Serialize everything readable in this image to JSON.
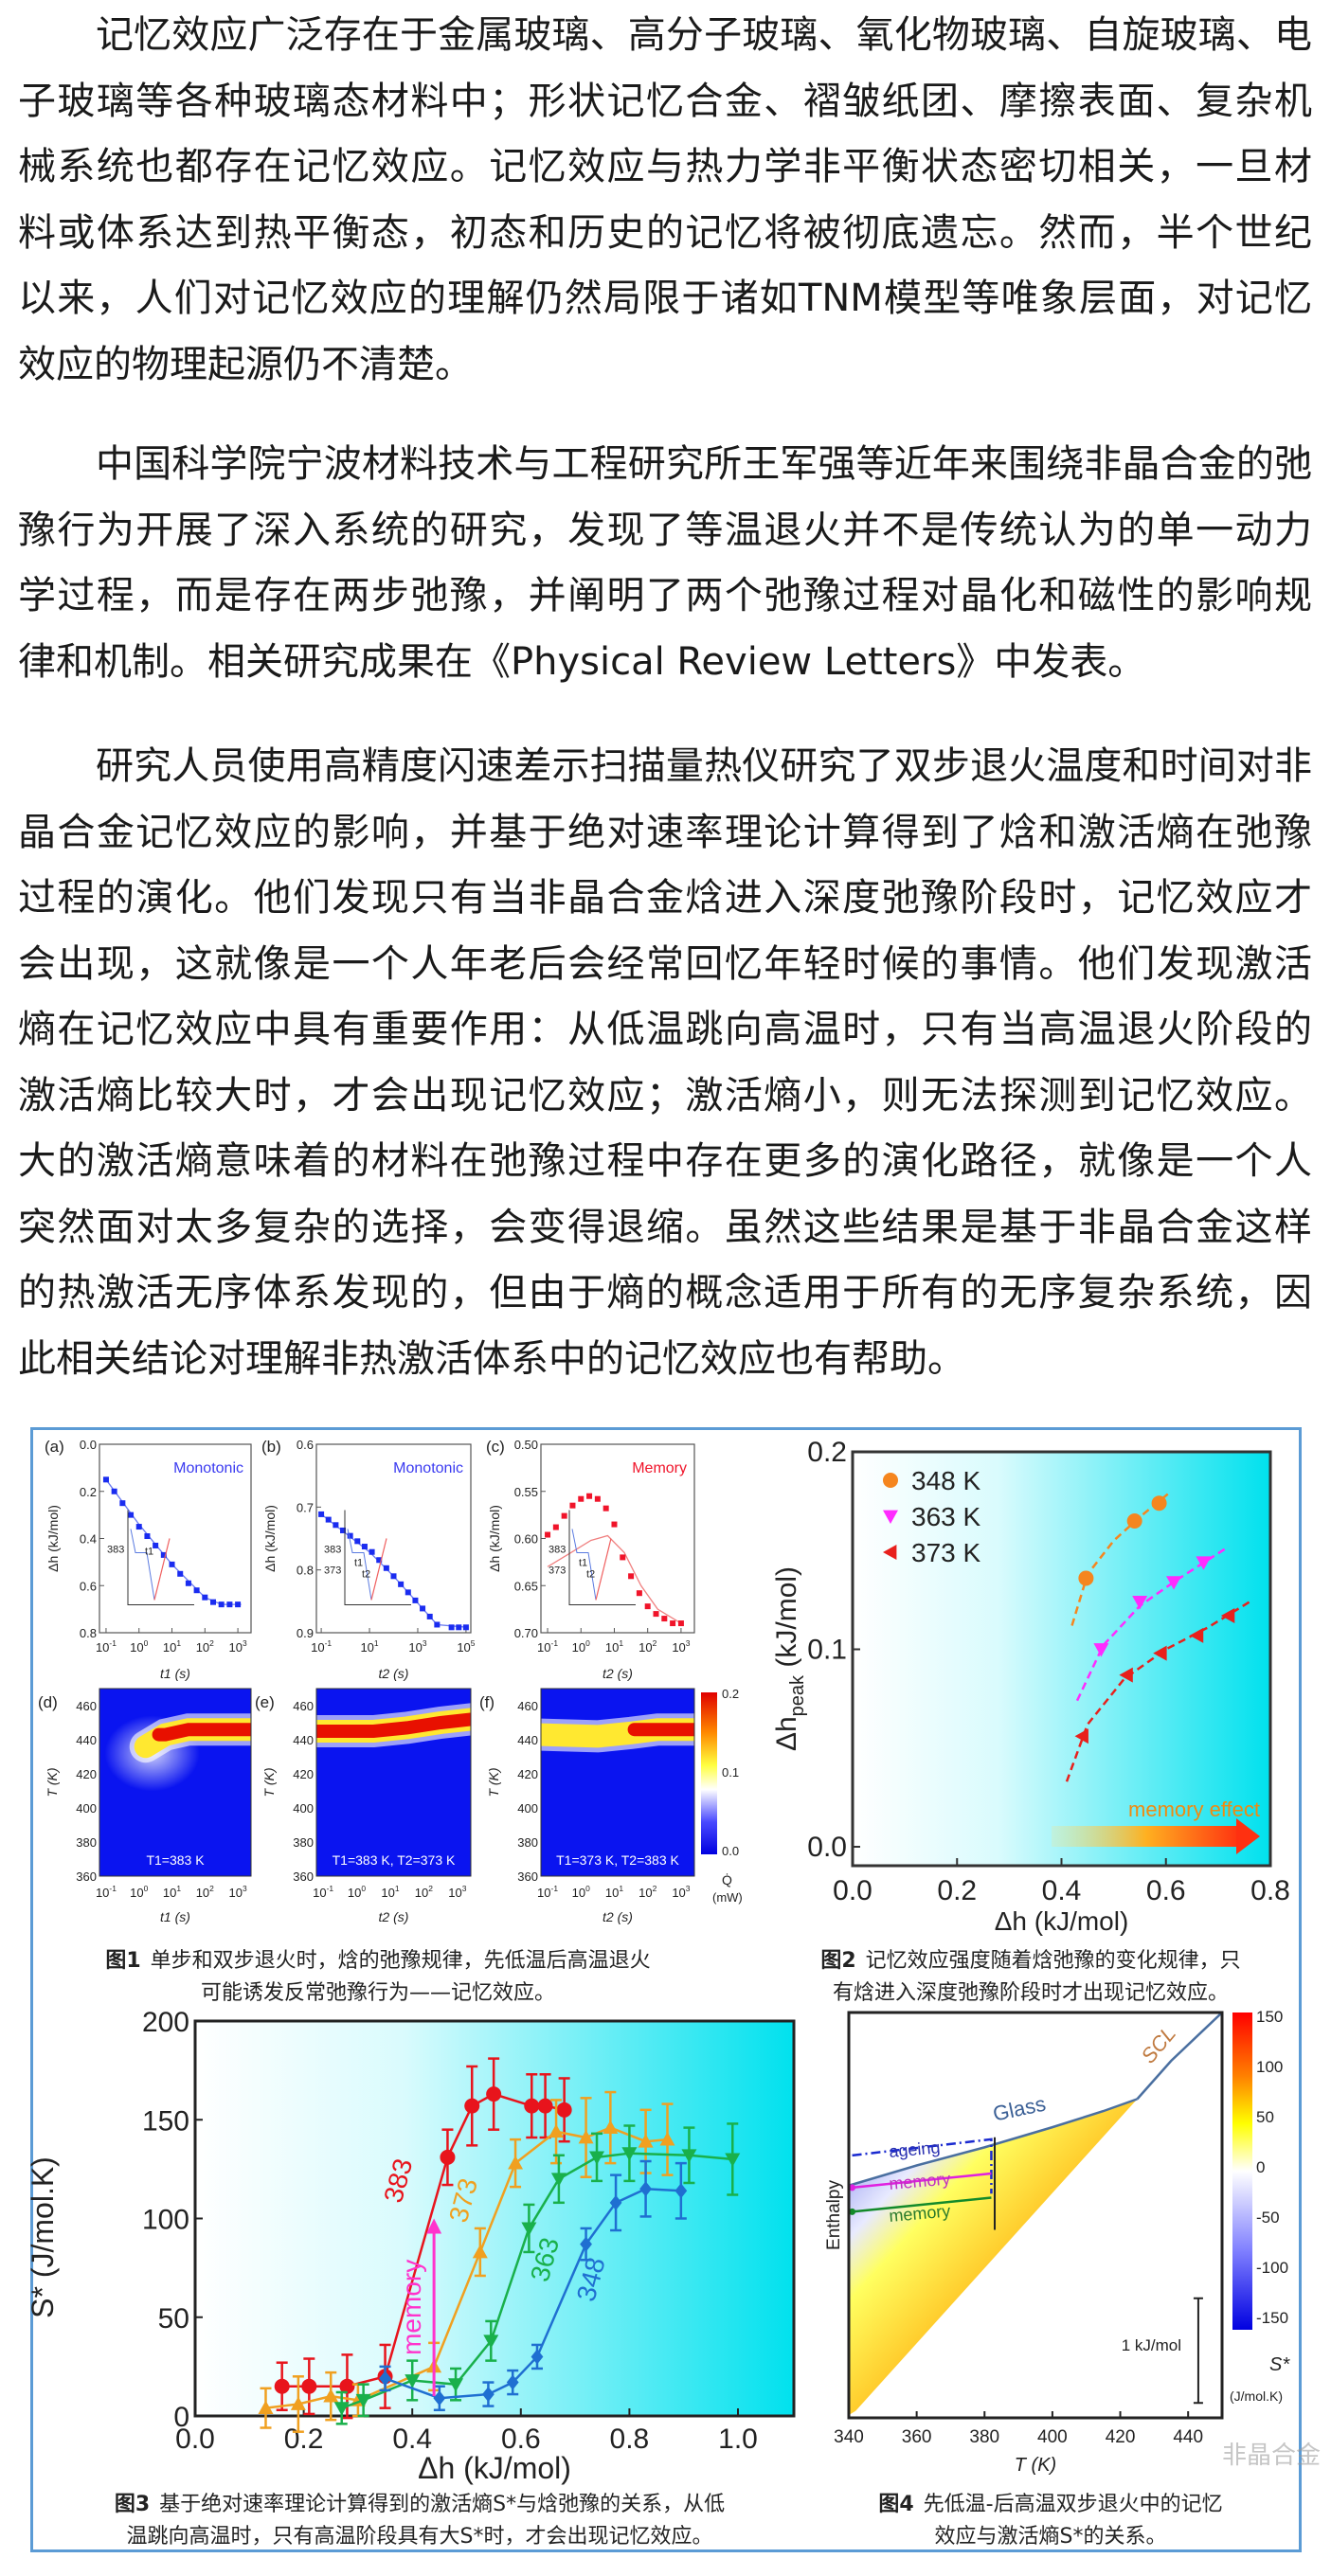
{
  "article": {
    "paragraphs": [
      {
        "lines": [
          "记忆效应广泛存在于金属玻璃、高分子玻璃、氧化物玻璃、自旋玻璃、电",
          "子玻璃等各种玻璃态材料中；形状记忆合金、褶皱纸团、摩擦表面、复杂机",
          "械系统也都存在记忆效应。记忆效应与热力学非平衡状态密切相关，一旦材",
          "料或体系达到热平衡态，初态和历史的记忆将被彻底遗忘。然而，半个世纪",
          "以来，人们对记忆效应的理解仍然局限于诸如TNM模型等唯象层面，对记忆",
          "效应的物理起源仍不清楚。"
        ]
      },
      {
        "lines": [
          "中国科学院宁波材料技术与工程研究所王军强等近年来围绕非晶合金的弛",
          "豫行为开展了深入系统的研究，发现了等温退火并不是传统认为的单一动力",
          "学过程，而是存在两步弛豫，并阐明了两个弛豫过程对晶化和磁性的影响规",
          "律和机制。相关研究成果在《Physical Review Letters》中发表。"
        ]
      },
      {
        "lines": [
          "研究人员使用高精度闪速差示扫描量热仪研究了双步退火温度和时间对非",
          "晶合金记忆效应的影响，并基于绝对速率理论计算得到了焓和激活熵在弛豫",
          "过程的演化。他们发现只有当非晶合金焓进入深度弛豫阶段时，记忆效应才",
          "会出现，这就像是一个人年老后会经常回忆年轻时候的事情。他们发现激活",
          "熵在记忆效应中具有重要作用：从低温跳向高温时，只有当高温退火阶段的",
          "激活熵比较大时，才会出现记忆效应；激活熵小，则无法探测到记忆效应。",
          "大的激活熵意味着的材料在弛豫过程中存在更多的演化路径，就像是一个人",
          "突然面对太多复杂的选择，会变得退缩。虽然这些结果是基于非晶合金这样",
          "的热激活无序体系发现的，但由于熵的概念适用于所有的无序复杂系统，因",
          "此相关结论对理解非热激活体系中的记忆效应也有帮助。"
        ]
      }
    ]
  },
  "captions": {
    "fig1": {
      "label": "图1",
      "line1": "单步和双步退火时，焓的弛豫规律，先低温后高温退火",
      "line2": "可能诱发反常弛豫行为——记忆效应。"
    },
    "fig2": {
      "label": "图2",
      "line1": "记忆效应强度随着焓弛豫的变化规律，只",
      "line2": "有焓进入深度弛豫阶段时才出现记忆效应。"
    },
    "fig3": {
      "label": "图3",
      "line1": "基于绝对速率理论计算得到的激活熵S*与焓弛豫的关系，从低",
      "line2": "温跳向高温时，只有高温阶段具有大S*时，才会出现记忆效应。"
    },
    "fig4": {
      "label": "图4",
      "line1": "先低温-后高温双步退火中的记忆",
      "line2": "效应与激活熵S*的关系。"
    },
    "watermark": "非晶合金"
  },
  "colors": {
    "border": "#5b9bd5",
    "cyan": "#00e1ee",
    "blue_marker": "#1a2cf0",
    "red_marker": "#f0142a"
  },
  "chart_data": [
    {
      "id": "fig1a",
      "type": "line",
      "panel_label": "(a)",
      "title": "Monotonic",
      "title_color": "#3a3af0",
      "x_scale": "log10",
      "x_ticks": [
        -1,
        0,
        1,
        2,
        3
      ],
      "xlim": [
        -1.2,
        3.4
      ],
      "xlabel": "t1 (s)",
      "ylabel": "Δh (kJ/mol)",
      "ylim": [
        0.0,
        0.8
      ],
      "y_reversed": true,
      "y_ticks": [
        "0.0",
        "0.2",
        "0.4",
        "0.6",
        "0.8"
      ],
      "marker_color": "#1a2cf0",
      "points": [
        [
          -1,
          0.15
        ],
        [
          -0.75,
          0.2
        ],
        [
          -0.5,
          0.25
        ],
        [
          -0.25,
          0.3
        ],
        [
          0,
          0.35
        ],
        [
          0.25,
          0.39
        ],
        [
          0.5,
          0.43
        ],
        [
          0.75,
          0.47
        ],
        [
          1,
          0.51
        ],
        [
          1.25,
          0.55
        ],
        [
          1.5,
          0.59
        ],
        [
          1.75,
          0.62
        ],
        [
          2,
          0.65
        ],
        [
          2.25,
          0.67
        ],
        [
          2.5,
          0.68
        ],
        [
          2.75,
          0.68
        ],
        [
          3,
          0.68
        ]
      ],
      "fit": [
        [
          -1,
          0.15
        ],
        [
          0,
          0.34
        ],
        [
          1,
          0.51
        ],
        [
          2,
          0.65
        ],
        [
          2.5,
          0.68
        ],
        [
          3.1,
          0.68
        ]
      ],
      "inset_labels": [
        "383",
        "t1"
      ]
    },
    {
      "id": "fig1b",
      "type": "line",
      "panel_label": "(b)",
      "title": "Monotonic",
      "title_color": "#3a3af0",
      "x_scale": "log10",
      "x_ticks": [
        -1,
        1,
        3,
        5
      ],
      "xlim": [
        -1.2,
        5.2
      ],
      "xlabel": "t2 (s)",
      "ylabel": "Δh (kJ/mol)",
      "ylim": [
        0.6,
        0.95
      ],
      "y_reversed": true,
      "y_ticks": [
        "0.6",
        "0.7",
        "0.8",
        "0.9"
      ],
      "marker_color": "#1a2cf0",
      "points": [
        [
          -1,
          0.73
        ],
        [
          -0.7,
          0.74
        ],
        [
          -0.4,
          0.75
        ],
        [
          -0.1,
          0.76
        ],
        [
          0.2,
          0.77
        ],
        [
          0.5,
          0.78
        ],
        [
          0.8,
          0.79
        ],
        [
          1.1,
          0.8
        ],
        [
          1.4,
          0.815
        ],
        [
          1.7,
          0.83
        ],
        [
          2.0,
          0.845
        ],
        [
          2.3,
          0.86
        ],
        [
          2.6,
          0.875
        ],
        [
          2.9,
          0.89
        ],
        [
          3.2,
          0.905
        ],
        [
          3.5,
          0.92
        ],
        [
          3.8,
          0.935
        ],
        [
          4.4,
          0.94
        ],
        [
          4.7,
          0.94
        ],
        [
          5.0,
          0.94
        ]
      ],
      "fit": [
        [
          -1,
          0.73
        ],
        [
          1,
          0.8
        ],
        [
          2,
          0.845
        ],
        [
          3,
          0.895
        ],
        [
          3.8,
          0.935
        ],
        [
          5.1,
          0.94
        ]
      ],
      "inset_labels": [
        "383",
        "373",
        "t1",
        "t2"
      ]
    },
    {
      "id": "fig1c",
      "type": "line",
      "panel_label": "(c)",
      "title": "Memory",
      "title_color": "#f0142a",
      "x_scale": "log10",
      "x_ticks": [
        -1,
        0,
        1,
        2,
        3
      ],
      "xlim": [
        -1.2,
        3.4
      ],
      "xlabel": "t2 (s)",
      "ylabel": "Δh (kJ/mol)",
      "ylim": [
        0.5,
        0.7
      ],
      "y_reversed": true,
      "y_ticks": [
        "0.50",
        "0.55",
        "0.60",
        "0.65",
        "0.70"
      ],
      "marker_color": "#f0142a",
      "points": [
        [
          -1,
          0.596
        ],
        [
          -0.75,
          0.588
        ],
        [
          -0.5,
          0.576
        ],
        [
          -0.25,
          0.565
        ],
        [
          0,
          0.558
        ],
        [
          0.25,
          0.555
        ],
        [
          0.5,
          0.558
        ],
        [
          0.75,
          0.568
        ],
        [
          1,
          0.585
        ],
        [
          1.25,
          0.62
        ],
        [
          1.5,
          0.64
        ],
        [
          1.75,
          0.658
        ],
        [
          2,
          0.672
        ],
        [
          2.25,
          0.68
        ],
        [
          2.5,
          0.685
        ],
        [
          2.75,
          0.69
        ],
        [
          3,
          0.69
        ]
      ],
      "fit": [
        [
          -1,
          0.63
        ],
        [
          -0.3,
          0.615
        ],
        [
          0.3,
          0.602
        ],
        [
          0.8,
          0.597
        ],
        [
          1.3,
          0.615
        ],
        [
          1.8,
          0.65
        ],
        [
          2.3,
          0.675
        ],
        [
          3,
          0.69
        ]
      ],
      "inset_labels": [
        "383",
        "373",
        "t1",
        "t2"
      ]
    },
    {
      "id": "fig1d",
      "type": "heatmap",
      "panel_label": "(d)",
      "annotation": "T1=383 K",
      "x_ticks": [
        -1,
        0,
        1,
        2,
        3
      ],
      "xlim": [
        -1.2,
        3.4
      ],
      "xlabel": "t1 (s)",
      "ylabel": "T (K)",
      "ylim": [
        360,
        470
      ],
      "y_ticks": [
        360,
        380,
        400,
        420,
        440,
        460
      ],
      "ridge": [
        [
          0.2,
          436
        ],
        [
          0.8,
          443
        ],
        [
          1.5,
          446
        ],
        [
          3.4,
          446
        ]
      ],
      "red_from": 0.6,
      "glow": true
    },
    {
      "id": "fig1e",
      "type": "heatmap",
      "panel_label": "(e)",
      "annotation": "T1=383 K, T2=373 K",
      "x_ticks": [
        -1,
        0,
        1,
        2,
        3
      ],
      "xlim": [
        -1.2,
        3.4
      ],
      "xlabel": "t2 (s)",
      "ylabel": "T (K)",
      "ylim": [
        360,
        470
      ],
      "y_ticks": [
        360,
        380,
        400,
        420,
        440,
        460
      ],
      "ridge": [
        [
          -1.2,
          445
        ],
        [
          0.5,
          445
        ],
        [
          1.5,
          447
        ],
        [
          2.5,
          450
        ],
        [
          3.4,
          452
        ]
      ],
      "red_from": -1.2
    },
    {
      "id": "fig1f",
      "type": "heatmap",
      "panel_label": "(f)",
      "annotation": "T1=373 K, T2=383 K",
      "x_ticks": [
        -1,
        0,
        1,
        2,
        3
      ],
      "xlim": [
        -1.2,
        3.4
      ],
      "xlabel": "t2 (s)",
      "ylabel": "T (K)",
      "ylim": [
        360,
        470
      ],
      "y_ticks": [
        360,
        380,
        400,
        420,
        440,
        460
      ],
      "ridge": [
        [
          -1.2,
          443
        ],
        [
          0.5,
          442
        ],
        [
          1.5,
          444
        ],
        [
          2.3,
          446
        ],
        [
          3.4,
          446
        ]
      ],
      "red_from": 1.6,
      "colorbar": {
        "ticks": [
          "0.2",
          "0.1",
          "0.0"
        ],
        "label": "Q̇",
        "unit": "(mW)"
      }
    },
    {
      "id": "fig2",
      "type": "scatter",
      "xlabel": "Δh (kJ/mol)",
      "ylabel": "Δh",
      "ylabel_sub": "peak",
      "ylabel_unit": "(kJ/mol)",
      "xlim": [
        0,
        0.8
      ],
      "ylim": [
        -0.01,
        0.2
      ],
      "x_ticks": [
        "0.0",
        "0.2",
        "0.4",
        "0.6",
        "0.8"
      ],
      "y_ticks": [
        "0.0",
        "0.1",
        "0.2"
      ],
      "annotation": "memory effect",
      "legend_position": "top-left",
      "series": [
        {
          "name": "348 K",
          "marker": "circle",
          "color": "#f5861f",
          "points": [
            [
              0.447,
              0.136
            ],
            [
              0.54,
              0.165
            ],
            [
              0.587,
              0.174
            ]
          ],
          "fit": [
            [
              0.42,
              0.112
            ],
            [
              0.45,
              0.138
            ],
            [
              0.5,
              0.155
            ],
            [
              0.55,
              0.167
            ],
            [
              0.61,
              0.18
            ]
          ]
        },
        {
          "name": "363 K",
          "marker": "triangle-down",
          "color": "#ff2bff",
          "points": [
            [
              0.476,
              0.1
            ],
            [
              0.55,
              0.124
            ],
            [
              0.615,
              0.134
            ],
            [
              0.672,
              0.144
            ]
          ],
          "fit": [
            [
              0.43,
              0.074
            ],
            [
              0.48,
              0.102
            ],
            [
              0.55,
              0.122
            ],
            [
              0.62,
              0.135
            ],
            [
              0.72,
              0.152
            ]
          ]
        },
        {
          "name": "373 K",
          "marker": "triangle-left",
          "color": "#e8201c",
          "points": [
            [
              0.44,
              0.056
            ],
            [
              0.525,
              0.087
            ],
            [
              0.59,
              0.098
            ],
            [
              0.66,
              0.107
            ],
            [
              0.72,
              0.117
            ]
          ],
          "fit": [
            [
              0.41,
              0.033
            ],
            [
              0.45,
              0.062
            ],
            [
              0.52,
              0.085
            ],
            [
              0.6,
              0.1
            ],
            [
              0.68,
              0.111
            ],
            [
              0.76,
              0.124
            ]
          ]
        }
      ]
    },
    {
      "id": "fig3",
      "type": "line",
      "xlabel": "Δh (kJ/mol)",
      "ylabel": "S* (J/mol.K)",
      "xlim": [
        0,
        1.1
      ],
      "ylim": [
        0,
        200
      ],
      "x_ticks": [
        "0.0",
        "0.2",
        "0.4",
        "0.6",
        "0.8",
        "1.0"
      ],
      "y_ticks": [
        "0",
        "50",
        "100",
        "150",
        "200"
      ],
      "arrow_label": "memory",
      "arrow": {
        "x": 0.44,
        "from": 10,
        "to": 100,
        "color": "#ff33cc"
      },
      "series": [
        {
          "name": "383",
          "color": "#e8141c",
          "marker": "circle",
          "label_at": [
            0.39,
            118
          ],
          "points": [
            [
              0.16,
              15,
              12
            ],
            [
              0.21,
              15,
              14
            ],
            [
              0.28,
              15,
              16
            ],
            [
              0.35,
              20,
              16
            ],
            [
              0.465,
              131,
              14
            ],
            [
              0.51,
              157,
              20
            ],
            [
              0.55,
              163,
              18
            ],
            [
              0.62,
              157,
              16
            ],
            [
              0.645,
              157,
              16
            ],
            [
              0.68,
              155,
              16
            ]
          ]
        },
        {
          "name": "373",
          "color": "#f0a020",
          "marker": "triangle-up",
          "label_at": [
            0.51,
            108
          ],
          "points": [
            [
              0.13,
              4,
              10
            ],
            [
              0.19,
              6,
              14
            ],
            [
              0.25,
              10,
              12
            ],
            [
              0.3,
              8,
              8
            ],
            [
              0.44,
              25,
              12
            ],
            [
              0.525,
              83,
              12
            ],
            [
              0.59,
              128,
              12
            ],
            [
              0.665,
              144,
              16
            ],
            [
              0.72,
              141,
              20
            ],
            [
              0.765,
              146,
              18
            ],
            [
              0.83,
              139,
              16
            ],
            [
              0.87,
              140,
              18
            ]
          ]
        },
        {
          "name": "363",
          "color": "#19b04b",
          "marker": "triangle-down",
          "label_at": [
            0.66,
            78
          ],
          "points": [
            [
              0.27,
              4,
              8
            ],
            [
              0.31,
              8,
              8
            ],
            [
              0.4,
              18,
              10
            ],
            [
              0.48,
              16,
              8
            ],
            [
              0.545,
              38,
              10
            ],
            [
              0.615,
              95,
              12
            ],
            [
              0.67,
              120,
              12
            ],
            [
              0.74,
              131,
              12
            ],
            [
              0.8,
              133,
              14
            ],
            [
              0.91,
              132,
              14
            ],
            [
              0.99,
              130,
              18
            ]
          ]
        },
        {
          "name": "348",
          "color": "#1f6fd1",
          "marker": "diamond",
          "label_at": [
            0.745,
            68
          ],
          "points": [
            [
              0.35,
              19,
              6
            ],
            [
              0.45,
              9,
              6
            ],
            [
              0.54,
              11,
              6
            ],
            [
              0.585,
              17,
              6
            ],
            [
              0.63,
              30,
              6
            ],
            [
              0.72,
              87,
              8
            ],
            [
              0.775,
              108,
              14
            ],
            [
              0.83,
              115,
              14
            ],
            [
              0.895,
              114,
              14
            ]
          ]
        }
      ]
    },
    {
      "id": "fig4",
      "type": "area",
      "xlabel": "T (K)",
      "ylabel": "Enthalpy",
      "xlim": [
        340,
        450
      ],
      "ylim": [
        0,
        10
      ],
      "x_ticks": [
        "340",
        "360",
        "380",
        "400",
        "420",
        "440"
      ],
      "glass_label": "Glass",
      "scl_label": "SCL",
      "ageing_label": "ageing",
      "memory_label_1": "memory",
      "memory_label_2": "memory",
      "scale_bar_label": "1 kJ/mol",
      "colorbar": {
        "ticks": [
          "150",
          "100",
          "50",
          "0",
          "-50",
          "-100",
          "-150"
        ],
        "label": "S*",
        "unit": "(J/mol.K)",
        "range": [
          -150,
          150
        ]
      },
      "glass_curve": [
        [
          340,
          5.7
        ],
        [
          360,
          6.2
        ],
        [
          380,
          6.65
        ],
        [
          400,
          7.15
        ],
        [
          415,
          7.55
        ],
        [
          425,
          7.85
        ]
      ],
      "scl_line": [
        [
          342,
          0.1
        ],
        [
          425,
          7.85
        ],
        [
          435,
          8.8
        ],
        [
          450,
          10
        ]
      ],
      "ageing": {
        "H": 6.85,
        "T_from": 341,
        "T_to": 382,
        "drop_to": 5.5,
        "color": "#1a2ad0"
      },
      "memory_paths": [
        {
          "H": 5.95,
          "color": "#e020e0"
        },
        {
          "H": 5.35,
          "color": "#138a2a"
        }
      ],
      "step_line": {
        "T": 383,
        "H_from": 6.9,
        "H_to": 4.6
      }
    }
  ]
}
